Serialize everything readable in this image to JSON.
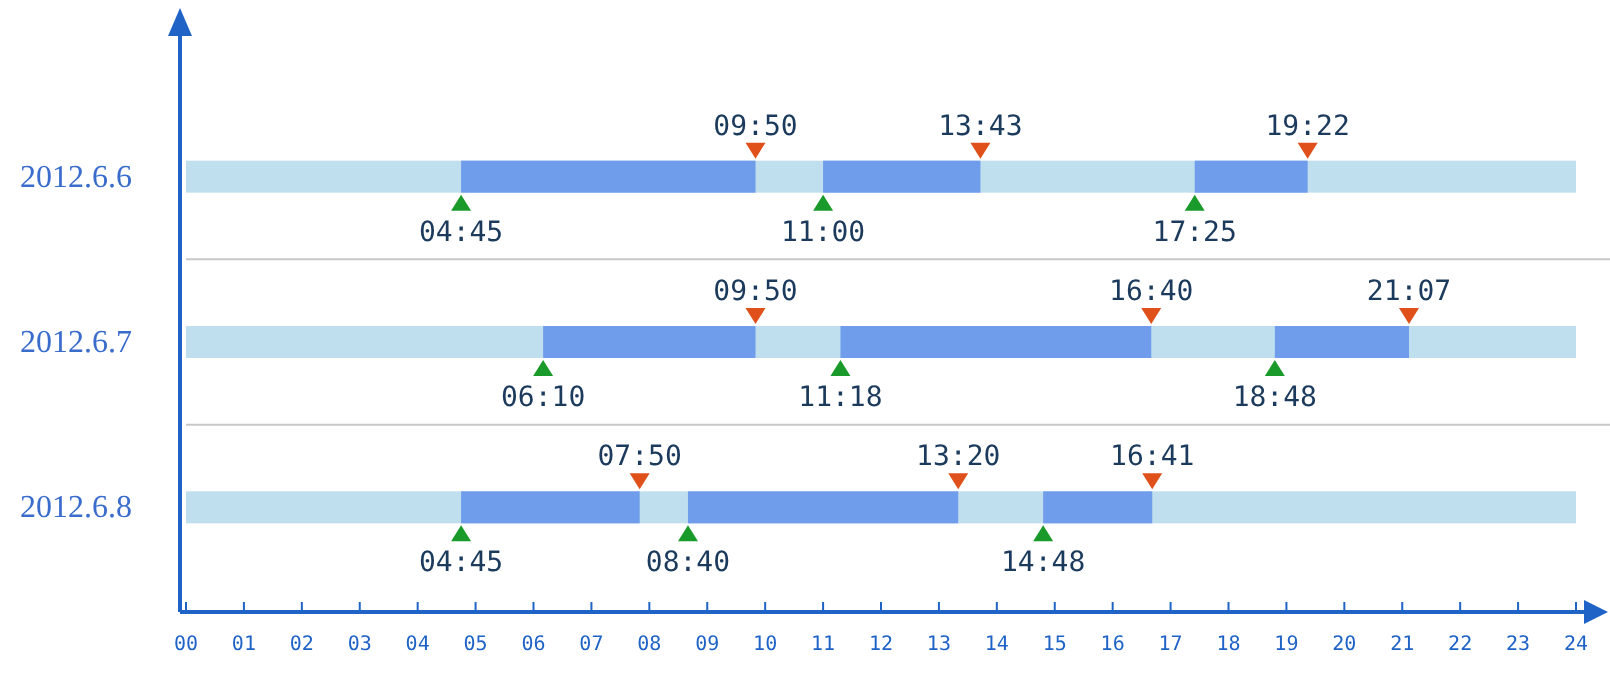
{
  "chart_data": {
    "type": "bar",
    "orientation": "horizontal",
    "categories": [
      "2012.6.6",
      "2012.6.7",
      "2012.6.8"
    ],
    "xlim": [
      0,
      24
    ],
    "xticks": [
      {
        "value": 0,
        "label": "00"
      },
      {
        "value": 1,
        "label": "01"
      },
      {
        "value": 2,
        "label": "02"
      },
      {
        "value": 3,
        "label": "03"
      },
      {
        "value": 4,
        "label": "04"
      },
      {
        "value": 5,
        "label": "05"
      },
      {
        "value": 6,
        "label": "06"
      },
      {
        "value": 7,
        "label": "07"
      },
      {
        "value": 8,
        "label": "08"
      },
      {
        "value": 9,
        "label": "09"
      },
      {
        "value": 10,
        "label": "10"
      },
      {
        "value": 11,
        "label": "11"
      },
      {
        "value": 12,
        "label": "12"
      },
      {
        "value": 13,
        "label": "13"
      },
      {
        "value": 14,
        "label": "14"
      },
      {
        "value": 15,
        "label": "15"
      },
      {
        "value": 16,
        "label": "16"
      },
      {
        "value": 17,
        "label": "17"
      },
      {
        "value": 18,
        "label": "18"
      },
      {
        "value": 19,
        "label": "19"
      },
      {
        "value": 20,
        "label": "20"
      },
      {
        "value": 21,
        "label": "21"
      },
      {
        "value": 22,
        "label": "22"
      },
      {
        "value": 23,
        "label": "23"
      },
      {
        "value": 24,
        "label": "24"
      }
    ],
    "grid": "y",
    "series": [
      {
        "color": "#bfdfee",
        "base": [
          0,
          0,
          0
        ],
        "values": [
          24,
          24,
          24
        ]
      },
      {
        "color": "#6f9ceb",
        "base": [
          4.75,
          6.1667,
          4.75
        ],
        "values": [
          5.0833,
          3.6667,
          3.0833
        ]
      },
      {
        "color": "#6f9ceb",
        "base": [
          11,
          11.3,
          8.6667
        ],
        "values": [
          2.7167,
          5.3667,
          4.6667
        ]
      },
      {
        "color": "#6f9ceb",
        "base": [
          17.4167,
          18.8,
          14.8
        ],
        "values": [
          1.95,
          2.3167,
          1.8833
        ]
      }
    ],
    "annotations": [
      {
        "text": "04:45",
        "x": 4.75,
        "y": "2012.6.6"
      },
      {
        "text": "09:50",
        "x": 9.8333,
        "y": "2012.6.6"
      },
      {
        "text": "11:00",
        "x": 11,
        "y": "2012.6.6"
      },
      {
        "text": "13:43",
        "x": 13.7167,
        "y": "2012.6.6"
      },
      {
        "text": "17:25",
        "x": 17.4167,
        "y": "2012.6.6"
      },
      {
        "text": "19:22",
        "x": 19.3667,
        "y": "2012.6.6"
      },
      {
        "text": "06:10",
        "x": 6.1667,
        "y": "2012.6.7"
      },
      {
        "text": "09:50",
        "x": 9.8333,
        "y": "2012.6.7"
      },
      {
        "text": "11:18",
        "x": 11.3,
        "y": "2012.6.7"
      },
      {
        "text": "16:40",
        "x": 16.6667,
        "y": "2012.6.7"
      },
      {
        "text": "18:48",
        "x": 18.8,
        "y": "2012.6.7"
      },
      {
        "text": "21:07",
        "x": 21.1167,
        "y": "2012.6.7"
      },
      {
        "text": "04:45",
        "x": 4.75,
        "y": "2012.6.8"
      },
      {
        "text": "07:50",
        "x": 7.8333,
        "y": "2012.6.8"
      },
      {
        "text": "08:40",
        "x": 8.6667,
        "y": "2012.6.8"
      },
      {
        "text": "13:20",
        "x": 13.3333,
        "y": "2012.6.8"
      },
      {
        "text": "14:48",
        "x": 14.8,
        "y": "2012.6.8"
      },
      {
        "text": "16:41",
        "x": 16.6833,
        "y": "2012.6.8"
      }
    ]
  }
}
